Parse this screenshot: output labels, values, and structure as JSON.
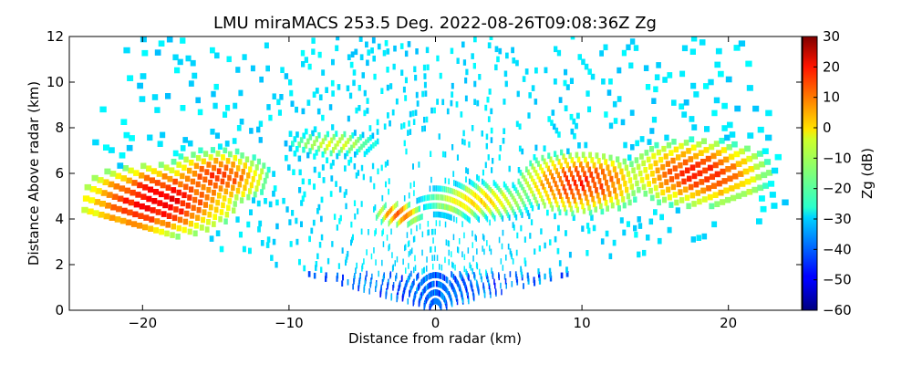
{
  "chart_data": {
    "type": "heatmap",
    "title": "LMU miraMACS 253.5 Deg. 2022-08-26T09:08:36Z  Zg",
    "xlabel": "Distance from radar (km)",
    "ylabel": "Distance Above radar  (km)",
    "xlim": [
      -25,
      25
    ],
    "ylim": [
      0,
      12
    ],
    "x_ticks": [
      -20,
      -10,
      0,
      10,
      20
    ],
    "x_tick_labels": [
      "−20",
      "−10",
      "0",
      "10",
      "20"
    ],
    "y_ticks": [
      0,
      2,
      4,
      6,
      8,
      10,
      12
    ],
    "y_tick_labels": [
      "0",
      "2",
      "4",
      "6",
      "8",
      "10",
      "12"
    ],
    "grid": false,
    "scan": {
      "max_range_km": 24.5,
      "min_elevation_deg": 10,
      "max_elevation_deg": 170
    },
    "colorbar": {
      "label": "Zg (dB)",
      "range": [
        -60,
        30
      ],
      "ticks": [
        -60,
        -50,
        -40,
        -30,
        -20,
        -10,
        0,
        10,
        20,
        30
      ],
      "tick_labels": [
        "−60",
        "−50",
        "−40",
        "−30",
        "−20",
        "−10",
        "0",
        "10",
        "20",
        "30"
      ],
      "colormap": "jet"
    },
    "cloud_features": [
      {
        "x_center": -19,
        "alt_center": 4.8,
        "x_half_width": 4.5,
        "alt_half_height": 1.3,
        "peak_dbz": 20
      },
      {
        "x_center": -15,
        "alt_center": 5.8,
        "x_half_width": 3.0,
        "alt_half_height": 1.0,
        "peak_dbz": 14
      },
      {
        "x_center": -7,
        "alt_center": 7.3,
        "x_half_width": 3.0,
        "alt_half_height": 0.5,
        "peak_dbz": -6
      },
      {
        "x_center": -2.5,
        "alt_center": 4.2,
        "x_half_width": 1.3,
        "alt_half_height": 0.4,
        "peak_dbz": 12
      },
      {
        "x_center": 3,
        "alt_center": 4.8,
        "x_half_width": 3.5,
        "alt_half_height": 0.7,
        "peak_dbz": 0
      },
      {
        "x_center": 10,
        "alt_center": 5.6,
        "x_half_width": 3.5,
        "alt_half_height": 1.1,
        "peak_dbz": 15
      },
      {
        "x_center": 18,
        "alt_center": 6.0,
        "x_half_width": 4.0,
        "alt_half_height": 1.2,
        "peak_dbz": 15
      }
    ]
  }
}
